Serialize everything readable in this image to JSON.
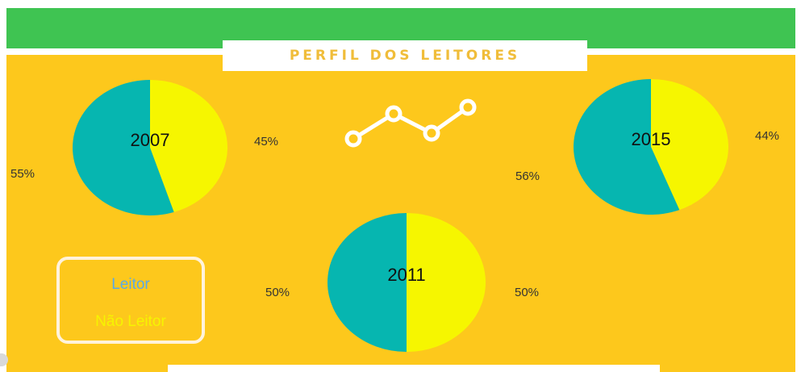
{
  "header": {
    "title": "PERFIL DOS LEITORES"
  },
  "legend": [
    {
      "label": "Leitor",
      "color": "#5aa9e6"
    },
    {
      "label": "Não Leitor",
      "color": "#f6f400"
    }
  ],
  "colors": {
    "topbar": "#3fc452",
    "panel": "#fdc81c",
    "leitor_slice": "#06b6b0",
    "nao_leitor_slice": "#f6f600",
    "icon": "#ffffff"
  },
  "chart_data": [
    {
      "type": "pie",
      "title": "2007",
      "slices": [
        {
          "label": "Leitor",
          "value": 55,
          "text": "55%"
        },
        {
          "label": "Não Leitor",
          "value": 45,
          "text": "45%"
        }
      ]
    },
    {
      "type": "pie",
      "title": "2011",
      "slices": [
        {
          "label": "Leitor",
          "value": 50,
          "text": "50%"
        },
        {
          "label": "Não Leitor",
          "value": 50,
          "text": "50%"
        }
      ]
    },
    {
      "type": "pie",
      "title": "2015",
      "slices": [
        {
          "label": "Leitor",
          "value": 56,
          "text": "56%"
        },
        {
          "label": "Não Leitor",
          "value": 44,
          "text": "44%"
        }
      ]
    }
  ],
  "decor": {
    "icon": "line-chart-icon"
  }
}
